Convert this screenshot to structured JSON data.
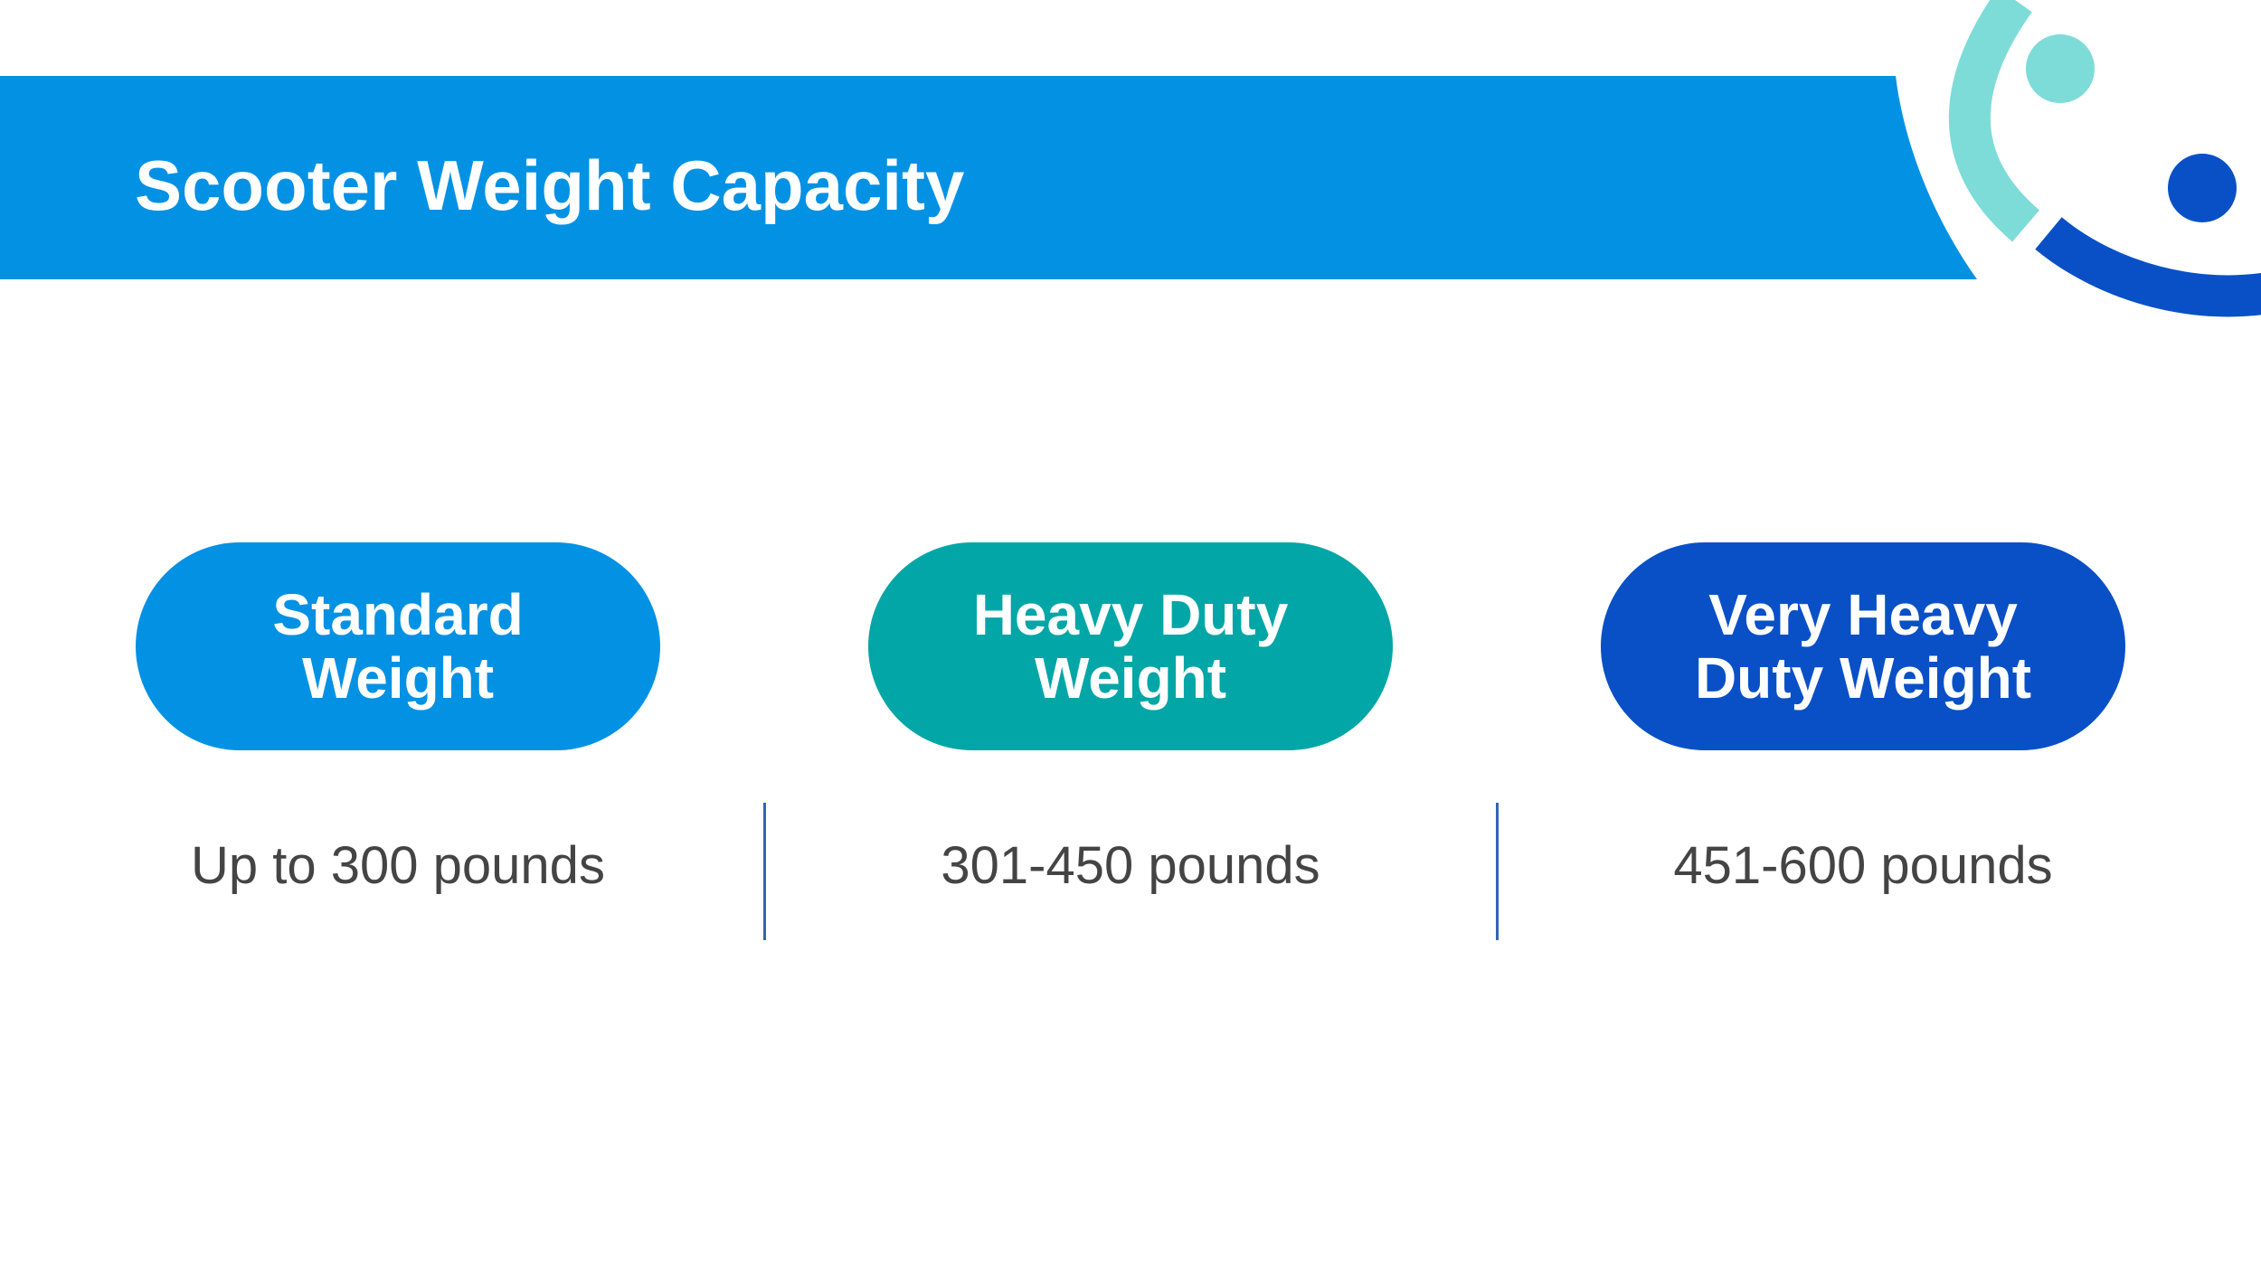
{
  "title": "Scooter Weight Capacity",
  "colors": {
    "header": "#0391e4",
    "teal_light": "#7edcd8",
    "navy": "#0950c7",
    "divider": "#2f66b8",
    "value_text": "#444444"
  },
  "categories": [
    {
      "label_line1": "Standard",
      "label_line2": "Weight",
      "capacity": "Up to 300 pounds",
      "color": "#0391e4"
    },
    {
      "label_line1": "Heavy Duty",
      "label_line2": "Weight",
      "capacity": "301-450 pounds",
      "color": "#03a6a6"
    },
    {
      "label_line1": "Very Heavy",
      "label_line2": "Duty Weight",
      "capacity": "451-600 pounds",
      "color": "#0950c7"
    }
  ]
}
